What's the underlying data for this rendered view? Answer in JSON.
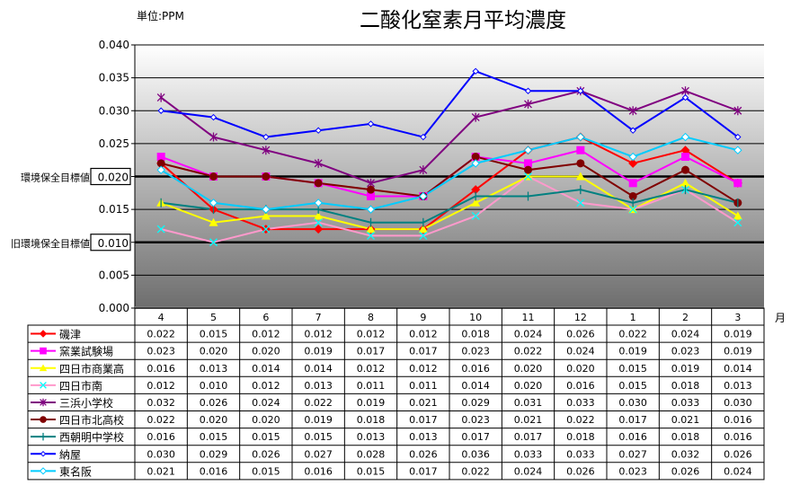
{
  "chart_data": {
    "type": "line",
    "title": "二酸化窒素月平均濃度",
    "unit_label": "単位:PPM",
    "xlabel": "月",
    "ylabel": "",
    "ylim": [
      0,
      0.04
    ],
    "yticks": [
      "0.000",
      "0.005",
      "0.010",
      "0.015",
      "0.020",
      "0.025",
      "0.030",
      "0.035",
      "0.040"
    ],
    "grid": true,
    "categories": [
      "4",
      "5",
      "6",
      "7",
      "8",
      "9",
      "10",
      "11",
      "12",
      "1",
      "2",
      "3"
    ],
    "reference_lines": [
      {
        "label": "環境保全目標値",
        "value": 0.02,
        "value_label": "0.020"
      },
      {
        "label": "旧環境保全目標値",
        "value": 0.01,
        "value_label": "0.010"
      }
    ],
    "legend_placement": "bottom-table",
    "series": [
      {
        "name": "磯津",
        "color": "#ff0000",
        "marker": "diamond",
        "values": [
          "0.022",
          "0.015",
          "0.012",
          "0.012",
          "0.012",
          "0.012",
          "0.018",
          "0.024",
          "0.026",
          "0.022",
          "0.024",
          "0.019"
        ]
      },
      {
        "name": "窯業試験場",
        "color": "#ff00ff",
        "marker": "square",
        "values": [
          "0.023",
          "0.020",
          "0.020",
          "0.019",
          "0.017",
          "0.017",
          "0.023",
          "0.022",
          "0.024",
          "0.019",
          "0.023",
          "0.019"
        ]
      },
      {
        "name": "四日市商業高",
        "color": "#ffff00",
        "marker": "triangle",
        "values": [
          "0.016",
          "0.013",
          "0.014",
          "0.014",
          "0.012",
          "0.012",
          "0.016",
          "0.020",
          "0.020",
          "0.015",
          "0.019",
          "0.014"
        ]
      },
      {
        "name": "四日市南",
        "color": "#ff99cc",
        "marker_color": "#00ffff",
        "marker": "x",
        "values": [
          "0.012",
          "0.010",
          "0.012",
          "0.013",
          "0.011",
          "0.011",
          "0.014",
          "0.020",
          "0.016",
          "0.015",
          "0.018",
          "0.013"
        ]
      },
      {
        "name": "三浜小学校",
        "color": "#800080",
        "marker": "asterisk",
        "values": [
          "0.032",
          "0.026",
          "0.024",
          "0.022",
          "0.019",
          "0.021",
          "0.029",
          "0.031",
          "0.033",
          "0.030",
          "0.033",
          "0.030"
        ]
      },
      {
        "name": "四日市北高校",
        "color": "#800000",
        "marker": "circle",
        "values": [
          "0.022",
          "0.020",
          "0.020",
          "0.019",
          "0.018",
          "0.017",
          "0.023",
          "0.021",
          "0.022",
          "0.017",
          "0.021",
          "0.016"
        ]
      },
      {
        "name": "西朝明中学校",
        "color": "#008080",
        "marker": "plus",
        "values": [
          "0.016",
          "0.015",
          "0.015",
          "0.015",
          "0.013",
          "0.013",
          "0.017",
          "0.017",
          "0.018",
          "0.016",
          "0.018",
          "0.016"
        ]
      },
      {
        "name": "納屋",
        "color": "#0000ff",
        "marker": "smalldiamond",
        "values": [
          "0.030",
          "0.029",
          "0.026",
          "0.027",
          "0.028",
          "0.026",
          "0.036",
          "0.033",
          "0.033",
          "0.027",
          "0.032",
          "0.026"
        ]
      },
      {
        "name": "東名阪",
        "color": "#00ccff",
        "marker": "hollowdiamond",
        "values": [
          "0.021",
          "0.016",
          "0.015",
          "0.016",
          "0.015",
          "0.017",
          "0.022",
          "0.024",
          "0.026",
          "0.023",
          "0.026",
          "0.024"
        ]
      }
    ]
  }
}
